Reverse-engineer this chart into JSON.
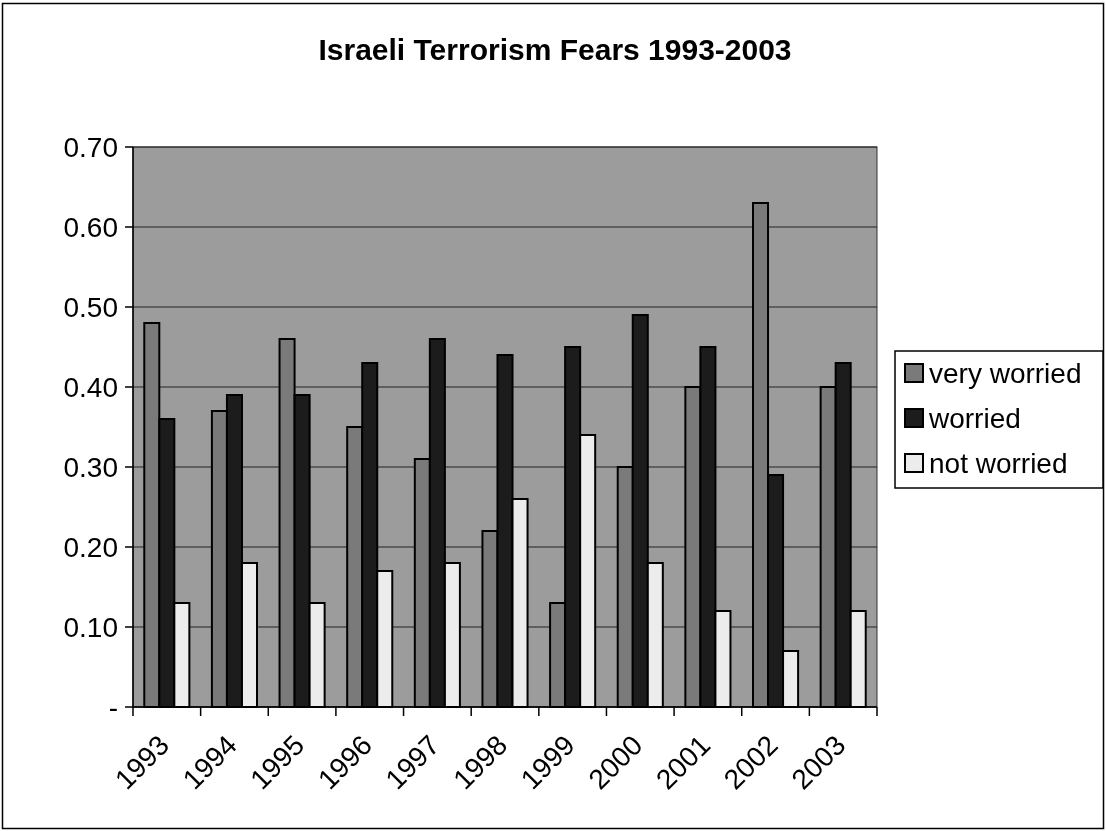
{
  "chart_data": {
    "type": "bar",
    "title": "Israeli Terrorism Fears 1993-2003",
    "categories": [
      "1993",
      "1994",
      "1995",
      "1996",
      "1997",
      "1998",
      "1999",
      "2000",
      "2001",
      "2002",
      "2003"
    ],
    "series": [
      {
        "name": "very worried",
        "color": "#7a7a7a",
        "values": [
          0.48,
          0.37,
          0.46,
          0.35,
          0.31,
          0.22,
          0.13,
          0.3,
          0.4,
          0.63,
          0.4
        ]
      },
      {
        "name": "worried",
        "color": "#1c1c1c",
        "values": [
          0.36,
          0.39,
          0.39,
          0.43,
          0.46,
          0.44,
          0.45,
          0.49,
          0.45,
          0.29,
          0.43
        ]
      },
      {
        "name": "not worried",
        "color": "#ececec",
        "values": [
          0.13,
          0.18,
          0.13,
          0.17,
          0.18,
          0.26,
          0.34,
          0.18,
          0.12,
          0.07,
          0.12
        ]
      }
    ],
    "ylim": [
      0,
      0.7
    ],
    "yticks": [
      {
        "value": 0,
        "label": "-"
      },
      {
        "value": 0.1,
        "label": "0.10"
      },
      {
        "value": 0.2,
        "label": "0.20"
      },
      {
        "value": 0.3,
        "label": "0.30"
      },
      {
        "value": 0.4,
        "label": "0.40"
      },
      {
        "value": 0.5,
        "label": "0.50"
      },
      {
        "value": 0.6,
        "label": "0.60"
      },
      {
        "value": 0.7,
        "label": "0.70"
      }
    ],
    "grid": "y",
    "legend": "right"
  }
}
